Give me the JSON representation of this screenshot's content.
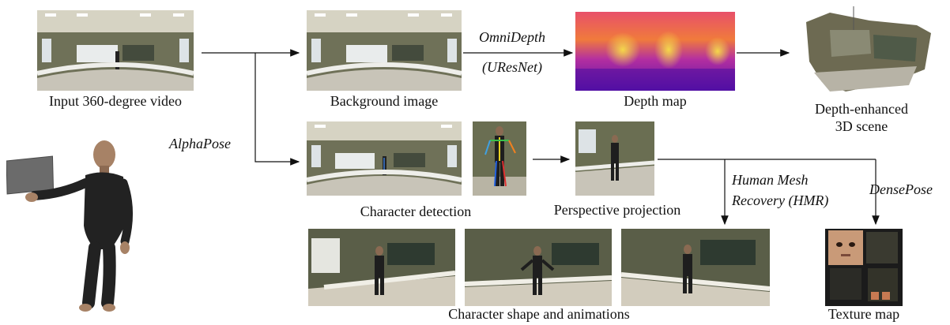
{
  "diagram": {
    "labels": {
      "input_video": "Input 360-degree video",
      "background_image": "Background image",
      "depth_map": "Depth map",
      "depth_scene_line1": "Depth-enhanced",
      "depth_scene_line2": "3D scene",
      "character_detection": "Character detection",
      "perspective_projection": "Perspective projection",
      "character_shape": "Character shape and animations",
      "texture_map": "Texture map"
    },
    "edge_labels": {
      "omnidepth_line1": "OmniDepth",
      "omnidepth_line2": "(UResNet)",
      "alphapose": "AlphaPose",
      "hmr_line1": "Human Mesh",
      "hmr_line2": "Recovery (HMR)",
      "densepose": "DensePose"
    }
  }
}
